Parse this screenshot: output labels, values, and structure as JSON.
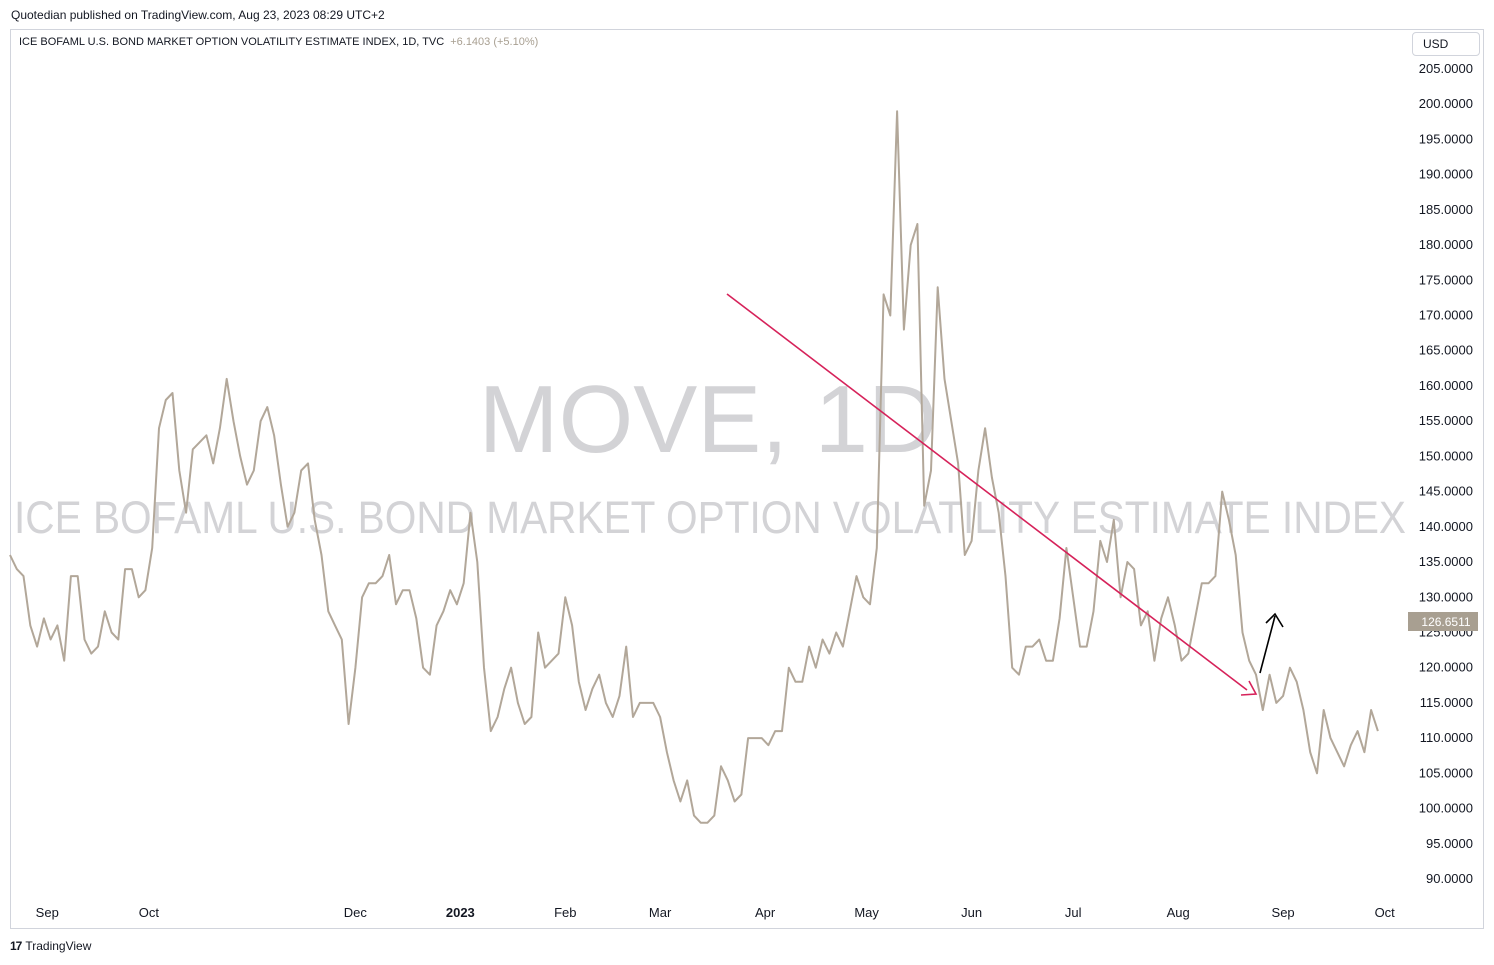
{
  "header": {
    "published": "Quotedian published on TradingView.com, Aug 23, 2023 08:29 UTC+2"
  },
  "legend": {
    "symbol": "ICE BOFAML U.S. BOND MARKET OPTION VOLATILITY ESTIMATE INDEX, 1D, TVC",
    "change": "+6.1403 (+5.10%)"
  },
  "currency": "USD",
  "watermark": {
    "ticker": "MOVE, 1D",
    "name": "ICE BOFAML U.S. BOND MARKET OPTION VOLATILITY ESTIMATE INDEX"
  },
  "price_label": "126.6511",
  "footer": {
    "brand": "TradingView",
    "logo": "tradingview-logo-icon"
  },
  "colors": {
    "line": "#b2a799",
    "trendline": "#d6225a",
    "arrow": "#000000",
    "price_badge": "#a89f91",
    "watermark": "#d3d3d6"
  },
  "chart_data": {
    "type": "line",
    "x_axis_labels": [
      "Sep",
      "Oct",
      "Dec",
      "2023",
      "Feb",
      "Mar",
      "Apr",
      "May",
      "Jun",
      "Jul",
      "Aug",
      "Sep",
      "Oct"
    ],
    "x_axis_dates": [
      "2022-09-01",
      "2022-10-01",
      "2022-12-01",
      "2023-01-01",
      "2023-02-01",
      "2023-03-01",
      "2023-04-01",
      "2023-05-01",
      "2023-06-01",
      "2023-07-01",
      "2023-08-01",
      "2023-09-01",
      "2023-10-01"
    ],
    "y_ticks": [
      "90.0000",
      "95.0000",
      "100.0000",
      "105.0000",
      "110.0000",
      "115.0000",
      "120.0000",
      "125.0000",
      "130.0000",
      "135.0000",
      "140.0000",
      "145.0000",
      "150.0000",
      "155.0000",
      "160.0000",
      "165.0000",
      "170.0000",
      "175.0000",
      "180.0000",
      "185.0000",
      "190.0000",
      "195.0000",
      "200.0000",
      "205.0000"
    ],
    "ylim": [
      87,
      208
    ],
    "xlim": [
      "2022-08-21",
      "2023-10-07"
    ],
    "grid": false,
    "series": [
      {
        "points": [
          [
            "2022-08-21",
            136
          ],
          [
            "2022-08-23",
            134
          ],
          [
            "2022-08-25",
            133
          ],
          [
            "2022-08-27",
            126
          ],
          [
            "2022-08-29",
            123
          ],
          [
            "2022-08-31",
            127
          ],
          [
            "2022-09-02",
            124
          ],
          [
            "2022-09-04",
            126
          ],
          [
            "2022-09-06",
            121
          ],
          [
            "2022-09-08",
            133
          ],
          [
            "2022-09-10",
            133
          ],
          [
            "2022-09-12",
            124
          ],
          [
            "2022-09-14",
            122
          ],
          [
            "2022-09-16",
            123
          ],
          [
            "2022-09-18",
            128
          ],
          [
            "2022-09-20",
            125
          ],
          [
            "2022-09-22",
            124
          ],
          [
            "2022-09-24",
            134
          ],
          [
            "2022-09-26",
            134
          ],
          [
            "2022-09-28",
            130
          ],
          [
            "2022-09-30",
            131
          ],
          [
            "2022-10-02",
            137
          ],
          [
            "2022-10-04",
            154
          ],
          [
            "2022-10-06",
            158
          ],
          [
            "2022-10-08",
            159
          ],
          [
            "2022-10-10",
            148
          ],
          [
            "2022-10-12",
            142
          ],
          [
            "2022-10-14",
            151
          ],
          [
            "2022-10-16",
            152
          ],
          [
            "2022-10-18",
            153
          ],
          [
            "2022-10-20",
            149
          ],
          [
            "2022-10-22",
            154
          ],
          [
            "2022-10-24",
            161
          ],
          [
            "2022-10-26",
            155
          ],
          [
            "2022-10-28",
            150
          ],
          [
            "2022-10-30",
            146
          ],
          [
            "2022-11-01",
            148
          ],
          [
            "2022-11-03",
            155
          ],
          [
            "2022-11-05",
            157
          ],
          [
            "2022-11-07",
            153
          ],
          [
            "2022-11-09",
            146
          ],
          [
            "2022-11-11",
            140
          ],
          [
            "2022-11-13",
            142
          ],
          [
            "2022-11-15",
            148
          ],
          [
            "2022-11-17",
            149
          ],
          [
            "2022-11-19",
            141
          ],
          [
            "2022-11-21",
            136
          ],
          [
            "2022-11-23",
            128
          ],
          [
            "2022-11-25",
            126
          ],
          [
            "2022-11-27",
            124
          ],
          [
            "2022-11-29",
            112
          ],
          [
            "2022-12-01",
            120
          ],
          [
            "2022-12-03",
            130
          ],
          [
            "2022-12-05",
            132
          ],
          [
            "2022-12-07",
            132
          ],
          [
            "2022-12-09",
            133
          ],
          [
            "2022-12-11",
            136
          ],
          [
            "2022-12-13",
            129
          ],
          [
            "2022-12-15",
            131
          ],
          [
            "2022-12-17",
            131
          ],
          [
            "2022-12-19",
            127
          ],
          [
            "2022-12-21",
            120
          ],
          [
            "2022-12-23",
            119
          ],
          [
            "2022-12-25",
            126
          ],
          [
            "2022-12-27",
            128
          ],
          [
            "2022-12-29",
            131
          ],
          [
            "2022-12-31",
            129
          ],
          [
            "2023-01-02",
            132
          ],
          [
            "2023-01-04",
            142
          ],
          [
            "2023-01-06",
            135
          ],
          [
            "2023-01-08",
            120
          ],
          [
            "2023-01-10",
            111
          ],
          [
            "2023-01-12",
            113
          ],
          [
            "2023-01-14",
            117
          ],
          [
            "2023-01-16",
            120
          ],
          [
            "2023-01-18",
            115
          ],
          [
            "2023-01-20",
            112
          ],
          [
            "2023-01-22",
            113
          ],
          [
            "2023-01-24",
            125
          ],
          [
            "2023-01-26",
            120
          ],
          [
            "2023-01-28",
            121
          ],
          [
            "2023-01-30",
            122
          ],
          [
            "2023-02-01",
            130
          ],
          [
            "2023-02-03",
            126
          ],
          [
            "2023-02-05",
            118
          ],
          [
            "2023-02-07",
            114
          ],
          [
            "2023-02-09",
            117
          ],
          [
            "2023-02-11",
            119
          ],
          [
            "2023-02-13",
            115
          ],
          [
            "2023-02-15",
            113
          ],
          [
            "2023-02-17",
            116
          ],
          [
            "2023-02-19",
            123
          ],
          [
            "2023-02-21",
            113
          ],
          [
            "2023-02-23",
            115
          ],
          [
            "2023-02-25",
            115
          ],
          [
            "2023-02-27",
            115
          ],
          [
            "2023-03-01",
            113
          ],
          [
            "2023-03-03",
            108
          ],
          [
            "2023-03-05",
            104
          ],
          [
            "2023-03-07",
            101
          ],
          [
            "2023-03-09",
            104
          ],
          [
            "2023-03-11",
            99
          ],
          [
            "2023-03-13",
            98
          ],
          [
            "2023-03-15",
            98
          ],
          [
            "2023-03-17",
            99
          ],
          [
            "2023-03-19",
            106
          ],
          [
            "2023-03-21",
            104
          ],
          [
            "2023-03-23",
            101
          ],
          [
            "2023-03-25",
            102
          ],
          [
            "2023-03-27",
            110
          ],
          [
            "2023-03-29",
            110
          ],
          [
            "2023-03-31",
            110
          ],
          [
            "2023-04-02",
            109
          ],
          [
            "2023-04-04",
            111
          ],
          [
            "2023-04-06",
            111
          ],
          [
            "2023-04-08",
            120
          ],
          [
            "2023-04-10",
            118
          ],
          [
            "2023-04-12",
            118
          ],
          [
            "2023-04-14",
            123
          ],
          [
            "2023-04-16",
            120
          ],
          [
            "2023-04-18",
            124
          ],
          [
            "2023-04-20",
            122
          ],
          [
            "2023-04-22",
            125
          ],
          [
            "2023-04-24",
            123
          ],
          [
            "2023-04-26",
            128
          ],
          [
            "2023-04-28",
            133
          ],
          [
            "2023-04-30",
            130
          ],
          [
            "2023-05-02",
            129
          ],
          [
            "2023-05-04",
            137
          ],
          [
            "2023-05-06",
            173
          ],
          [
            "2023-05-08",
            170
          ],
          [
            "2023-05-10",
            199
          ],
          [
            "2023-05-12",
            168
          ],
          [
            "2023-05-14",
            180
          ],
          [
            "2023-05-16",
            183
          ],
          [
            "2023-05-18",
            143
          ],
          [
            "2023-05-20",
            148
          ],
          [
            "2023-05-22",
            174
          ],
          [
            "2023-05-24",
            161
          ],
          [
            "2023-05-26",
            155
          ],
          [
            "2023-05-28",
            149
          ],
          [
            "2023-05-30",
            136
          ],
          [
            "2023-06-01",
            138
          ],
          [
            "2023-06-03",
            148
          ],
          [
            "2023-06-05",
            154
          ],
          [
            "2023-06-07",
            147
          ],
          [
            "2023-06-09",
            142
          ],
          [
            "2023-06-11",
            133
          ],
          [
            "2023-06-13",
            120
          ],
          [
            "2023-06-15",
            119
          ],
          [
            "2023-06-17",
            123
          ],
          [
            "2023-06-19",
            123
          ],
          [
            "2023-06-21",
            124
          ],
          [
            "2023-06-23",
            121
          ],
          [
            "2023-06-25",
            121
          ],
          [
            "2023-06-27",
            127
          ],
          [
            "2023-06-29",
            137
          ],
          [
            "2023-07-01",
            130
          ],
          [
            "2023-07-03",
            123
          ],
          [
            "2023-07-05",
            123
          ],
          [
            "2023-07-07",
            128
          ],
          [
            "2023-07-09",
            138
          ],
          [
            "2023-07-11",
            135
          ],
          [
            "2023-07-13",
            141
          ],
          [
            "2023-07-15",
            130
          ],
          [
            "2023-07-17",
            135
          ],
          [
            "2023-07-19",
            134
          ],
          [
            "2023-07-21",
            126
          ],
          [
            "2023-07-23",
            128
          ],
          [
            "2023-07-25",
            121
          ],
          [
            "2023-07-27",
            127
          ],
          [
            "2023-07-29",
            130
          ],
          [
            "2023-07-31",
            126
          ],
          [
            "2023-08-02",
            121
          ],
          [
            "2023-08-04",
            122
          ],
          [
            "2023-08-06",
            127
          ],
          [
            "2023-08-08",
            132
          ],
          [
            "2023-08-10",
            132
          ],
          [
            "2023-08-12",
            133
          ],
          [
            "2023-08-14",
            145
          ],
          [
            "2023-08-16",
            141
          ],
          [
            "2023-08-18",
            136
          ],
          [
            "2023-08-20",
            125
          ],
          [
            "2023-08-22",
            121
          ],
          [
            "2023-08-24",
            119
          ],
          [
            "2023-08-26",
            114
          ],
          [
            "2023-08-28",
            119
          ],
          [
            "2023-08-30",
            115
          ],
          [
            "2023-09-01",
            116
          ],
          [
            "2023-09-03",
            120
          ],
          [
            "2023-09-05",
            118
          ],
          [
            "2023-09-07",
            114
          ],
          [
            "2023-09-09",
            108
          ],
          [
            "2023-09-11",
            105
          ],
          [
            "2023-09-13",
            114
          ],
          [
            "2023-09-15",
            110
          ],
          [
            "2023-09-17",
            108
          ],
          [
            "2023-09-19",
            106
          ],
          [
            "2023-09-21",
            109
          ],
          [
            "2023-09-23",
            111
          ],
          [
            "2023-09-25",
            108
          ],
          [
            "2023-09-27",
            114
          ],
          [
            "2023-09-29",
            111
          ]
        ]
      }
    ]
  }
}
